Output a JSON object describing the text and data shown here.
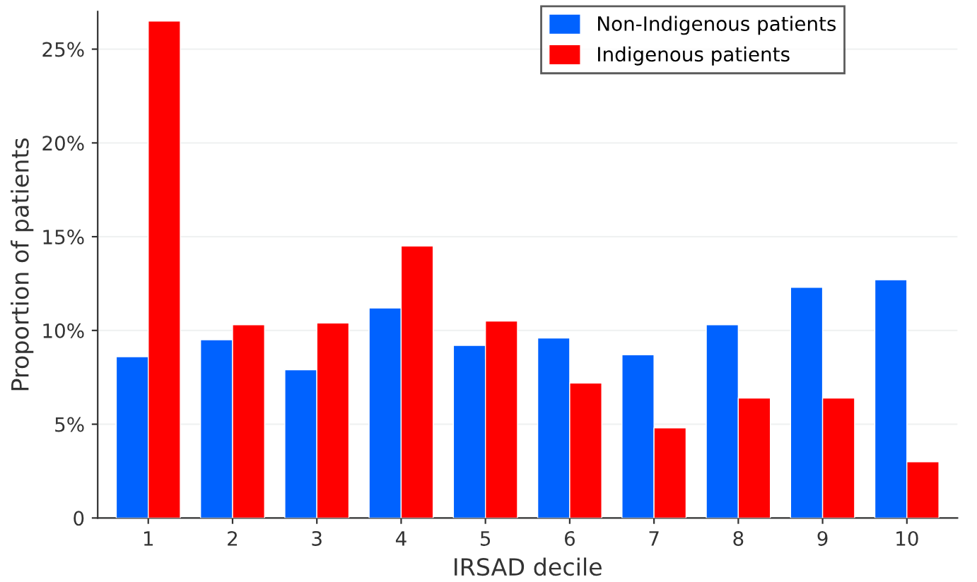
{
  "chart_data": {
    "type": "bar",
    "xlabel": "IRSAD decile",
    "ylabel": "Proportion of patients",
    "categories": [
      "1",
      "2",
      "3",
      "4",
      "5",
      "6",
      "7",
      "8",
      "9",
      "10"
    ],
    "series": [
      {
        "name": "Non-Indigenous patients",
        "color": "#0062ff",
        "values": [
          8.6,
          9.5,
          7.9,
          11.2,
          9.2,
          9.6,
          8.7,
          10.3,
          12.3,
          12.7
        ]
      },
      {
        "name": "Indigenous patients",
        "color": "#ff0000",
        "values": [
          26.5,
          10.3,
          10.4,
          14.5,
          10.5,
          7.2,
          4.8,
          6.4,
          6.4,
          3.0
        ]
      }
    ],
    "ylim": [
      0,
      27
    ],
    "yticks": [
      {
        "value": 0,
        "label": "0"
      },
      {
        "value": 5,
        "label": "5%"
      },
      {
        "value": 10,
        "label": "10%"
      },
      {
        "value": 15,
        "label": "15%"
      },
      {
        "value": 20,
        "label": "20%"
      },
      {
        "value": 25,
        "label": "25%"
      }
    ],
    "grid": "y",
    "legend": "top right"
  }
}
